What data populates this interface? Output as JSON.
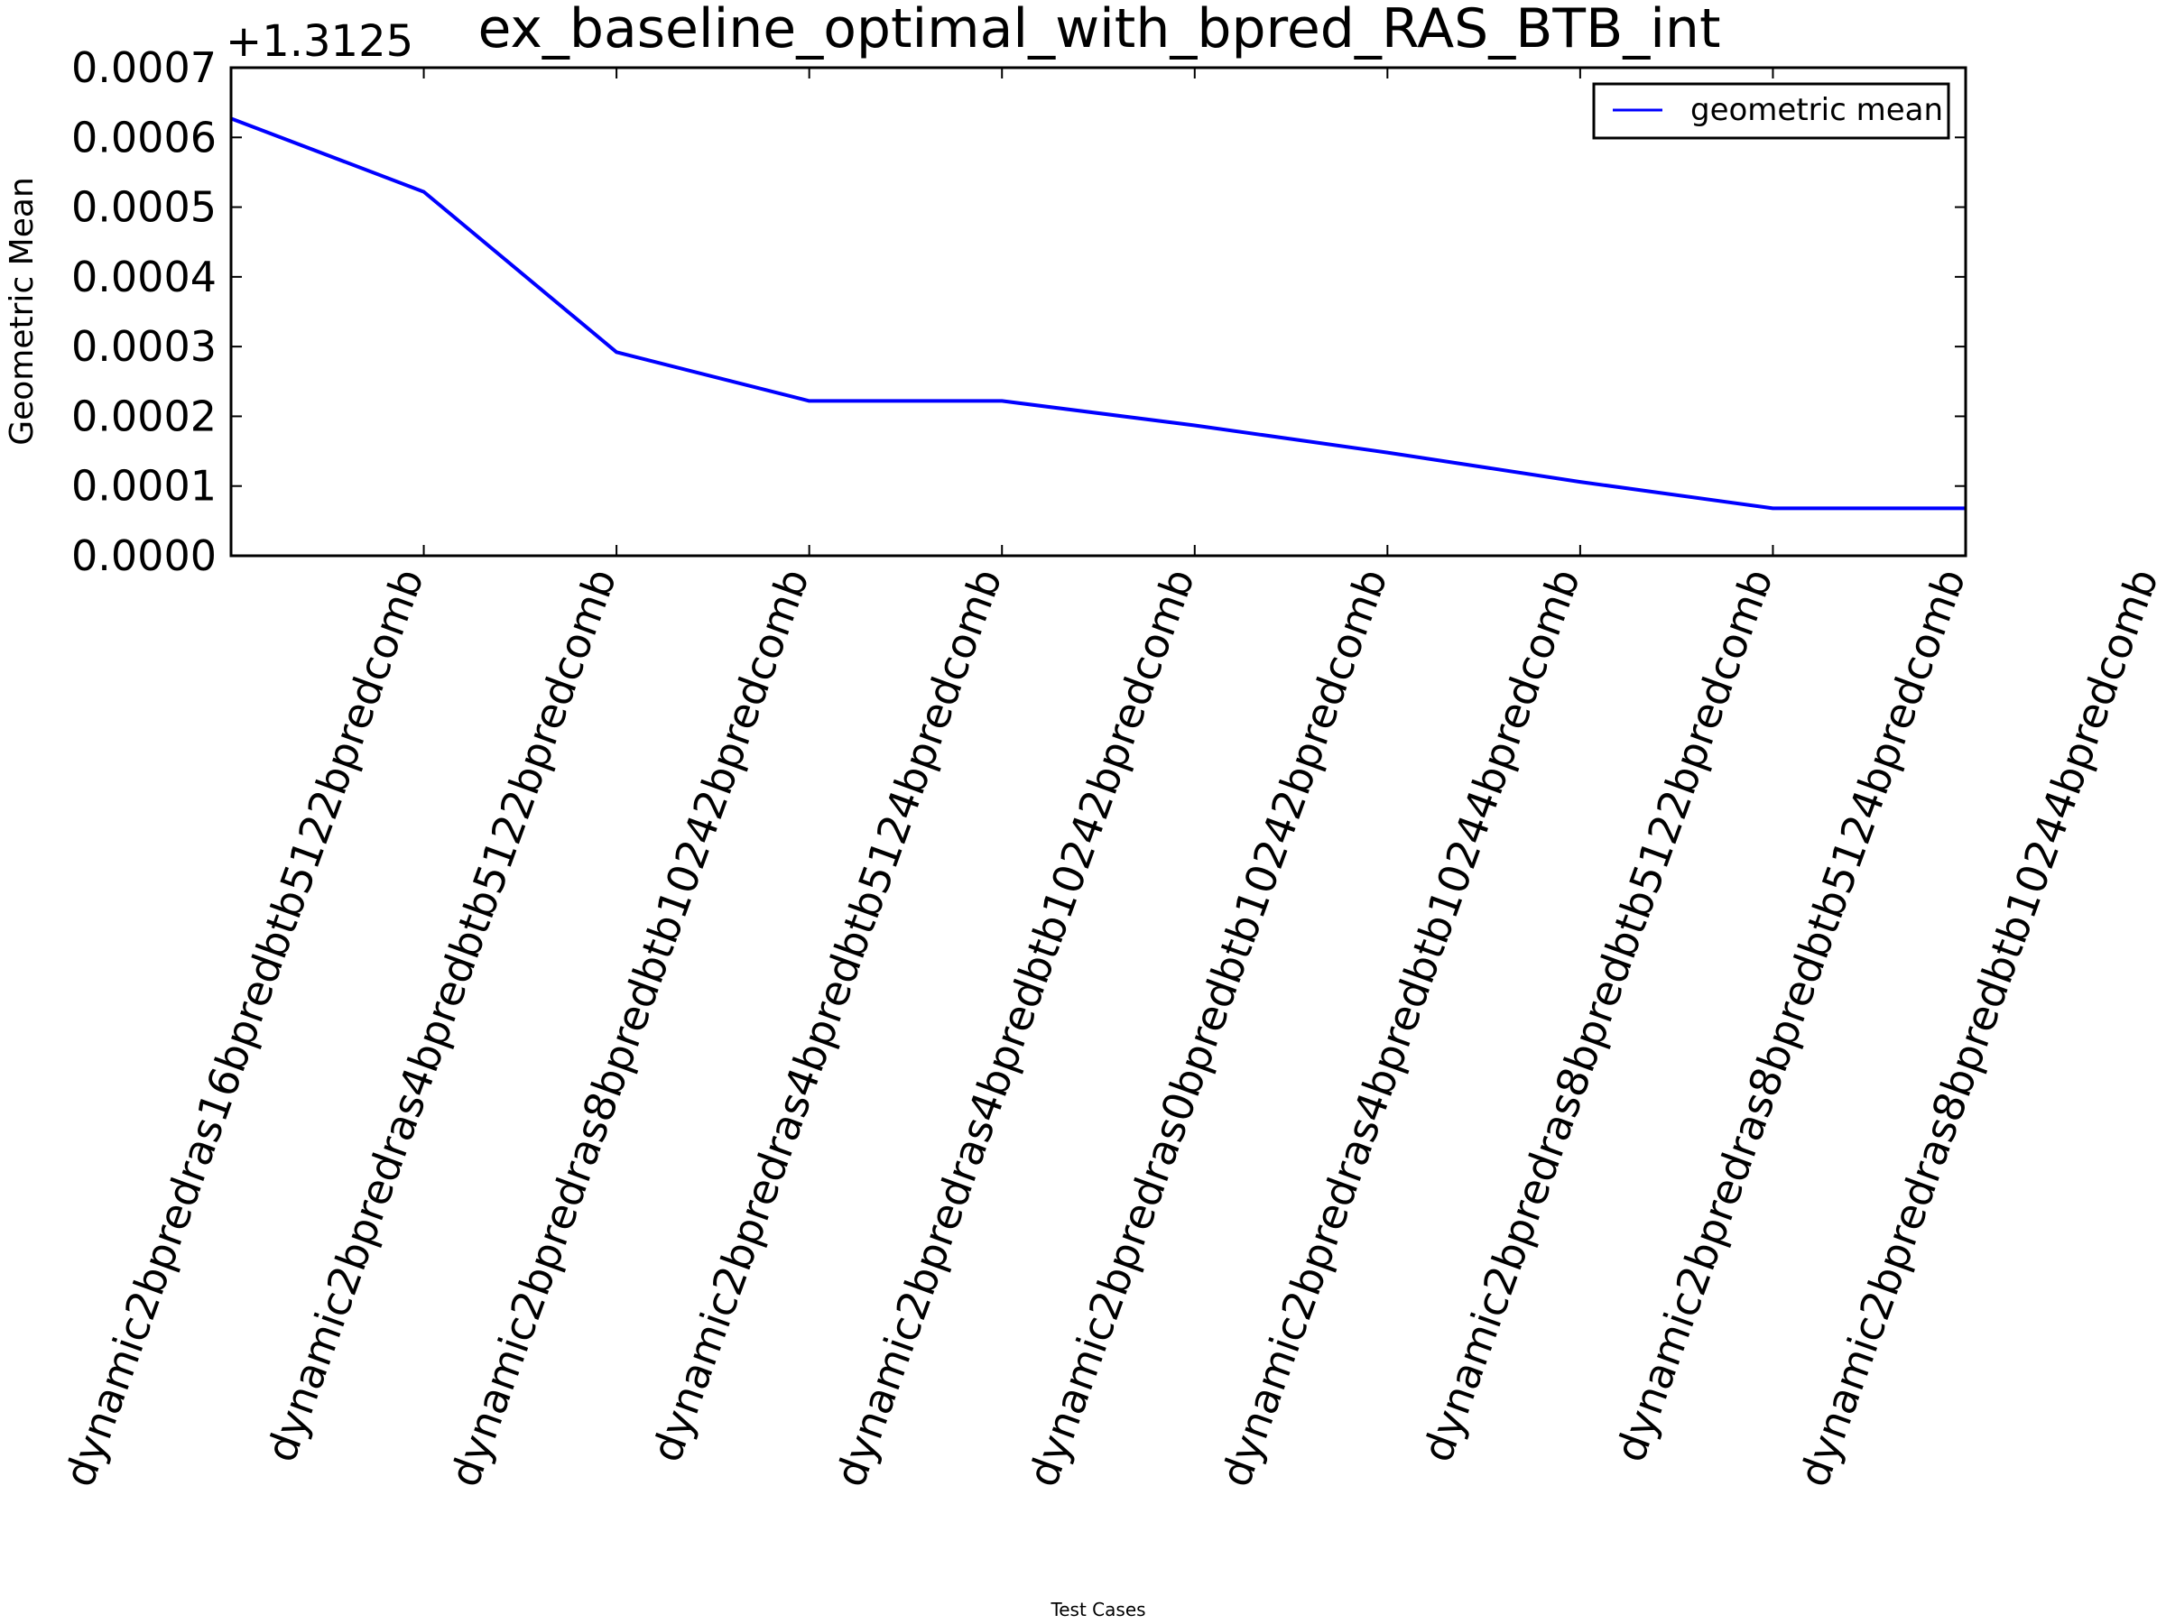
{
  "chart_data": {
    "type": "line",
    "title": "ex_baseline_optimal_with_bpred_RAS_BTB_int",
    "xlabel": "Test Cases",
    "ylabel": "Geometric Mean",
    "y_offset_label": "+1.3125",
    "y_offset": 1.3125,
    "ylim": [
      0.0,
      0.0007
    ],
    "yticks": [
      "0.0000",
      "0.0001",
      "0.0002",
      "0.0003",
      "0.0004",
      "0.0005",
      "0.0006",
      "0.0007"
    ],
    "xlim": [
      0,
      9
    ],
    "xtick_positions": [
      1,
      2,
      3,
      4,
      5,
      6,
      7,
      8,
      9,
      10
    ],
    "categories": [
      "dynamic2bpredras16bpredbtb5122bpredcomb",
      "dynamic2bpredras4bpredbtb5122bpredcomb",
      "dynamic2bpredras8bpredbtb10242bpredcomb",
      "dynamic2bpredras4bpredbtb5124bpredcomb",
      "dynamic2bpredras4bpredbtb10242bpredcomb",
      "dynamic2bpredras0bpredbtb10242bpredcomb",
      "dynamic2bpredras4bpredbtb10244bpredcomb",
      "dynamic2bpredras8bpredbtb5122bpredcomb",
      "dynamic2bpredras8bpredbtb5124bpredcomb",
      "dynamic2bpredras8bpredbtb10244bpredcomb"
    ],
    "series": [
      {
        "name": "geometric mean",
        "color": "#0000ff",
        "x": [
          0,
          1,
          2,
          3,
          4,
          5,
          6,
          7,
          8,
          9
        ],
        "values": [
          0.000627,
          0.000522,
          0.000292,
          0.000222,
          0.000222,
          0.000187,
          0.000148,
          0.000106,
          6.8e-05,
          6.8e-05
        ]
      }
    ],
    "legend_position": "top-right",
    "grid": false
  }
}
